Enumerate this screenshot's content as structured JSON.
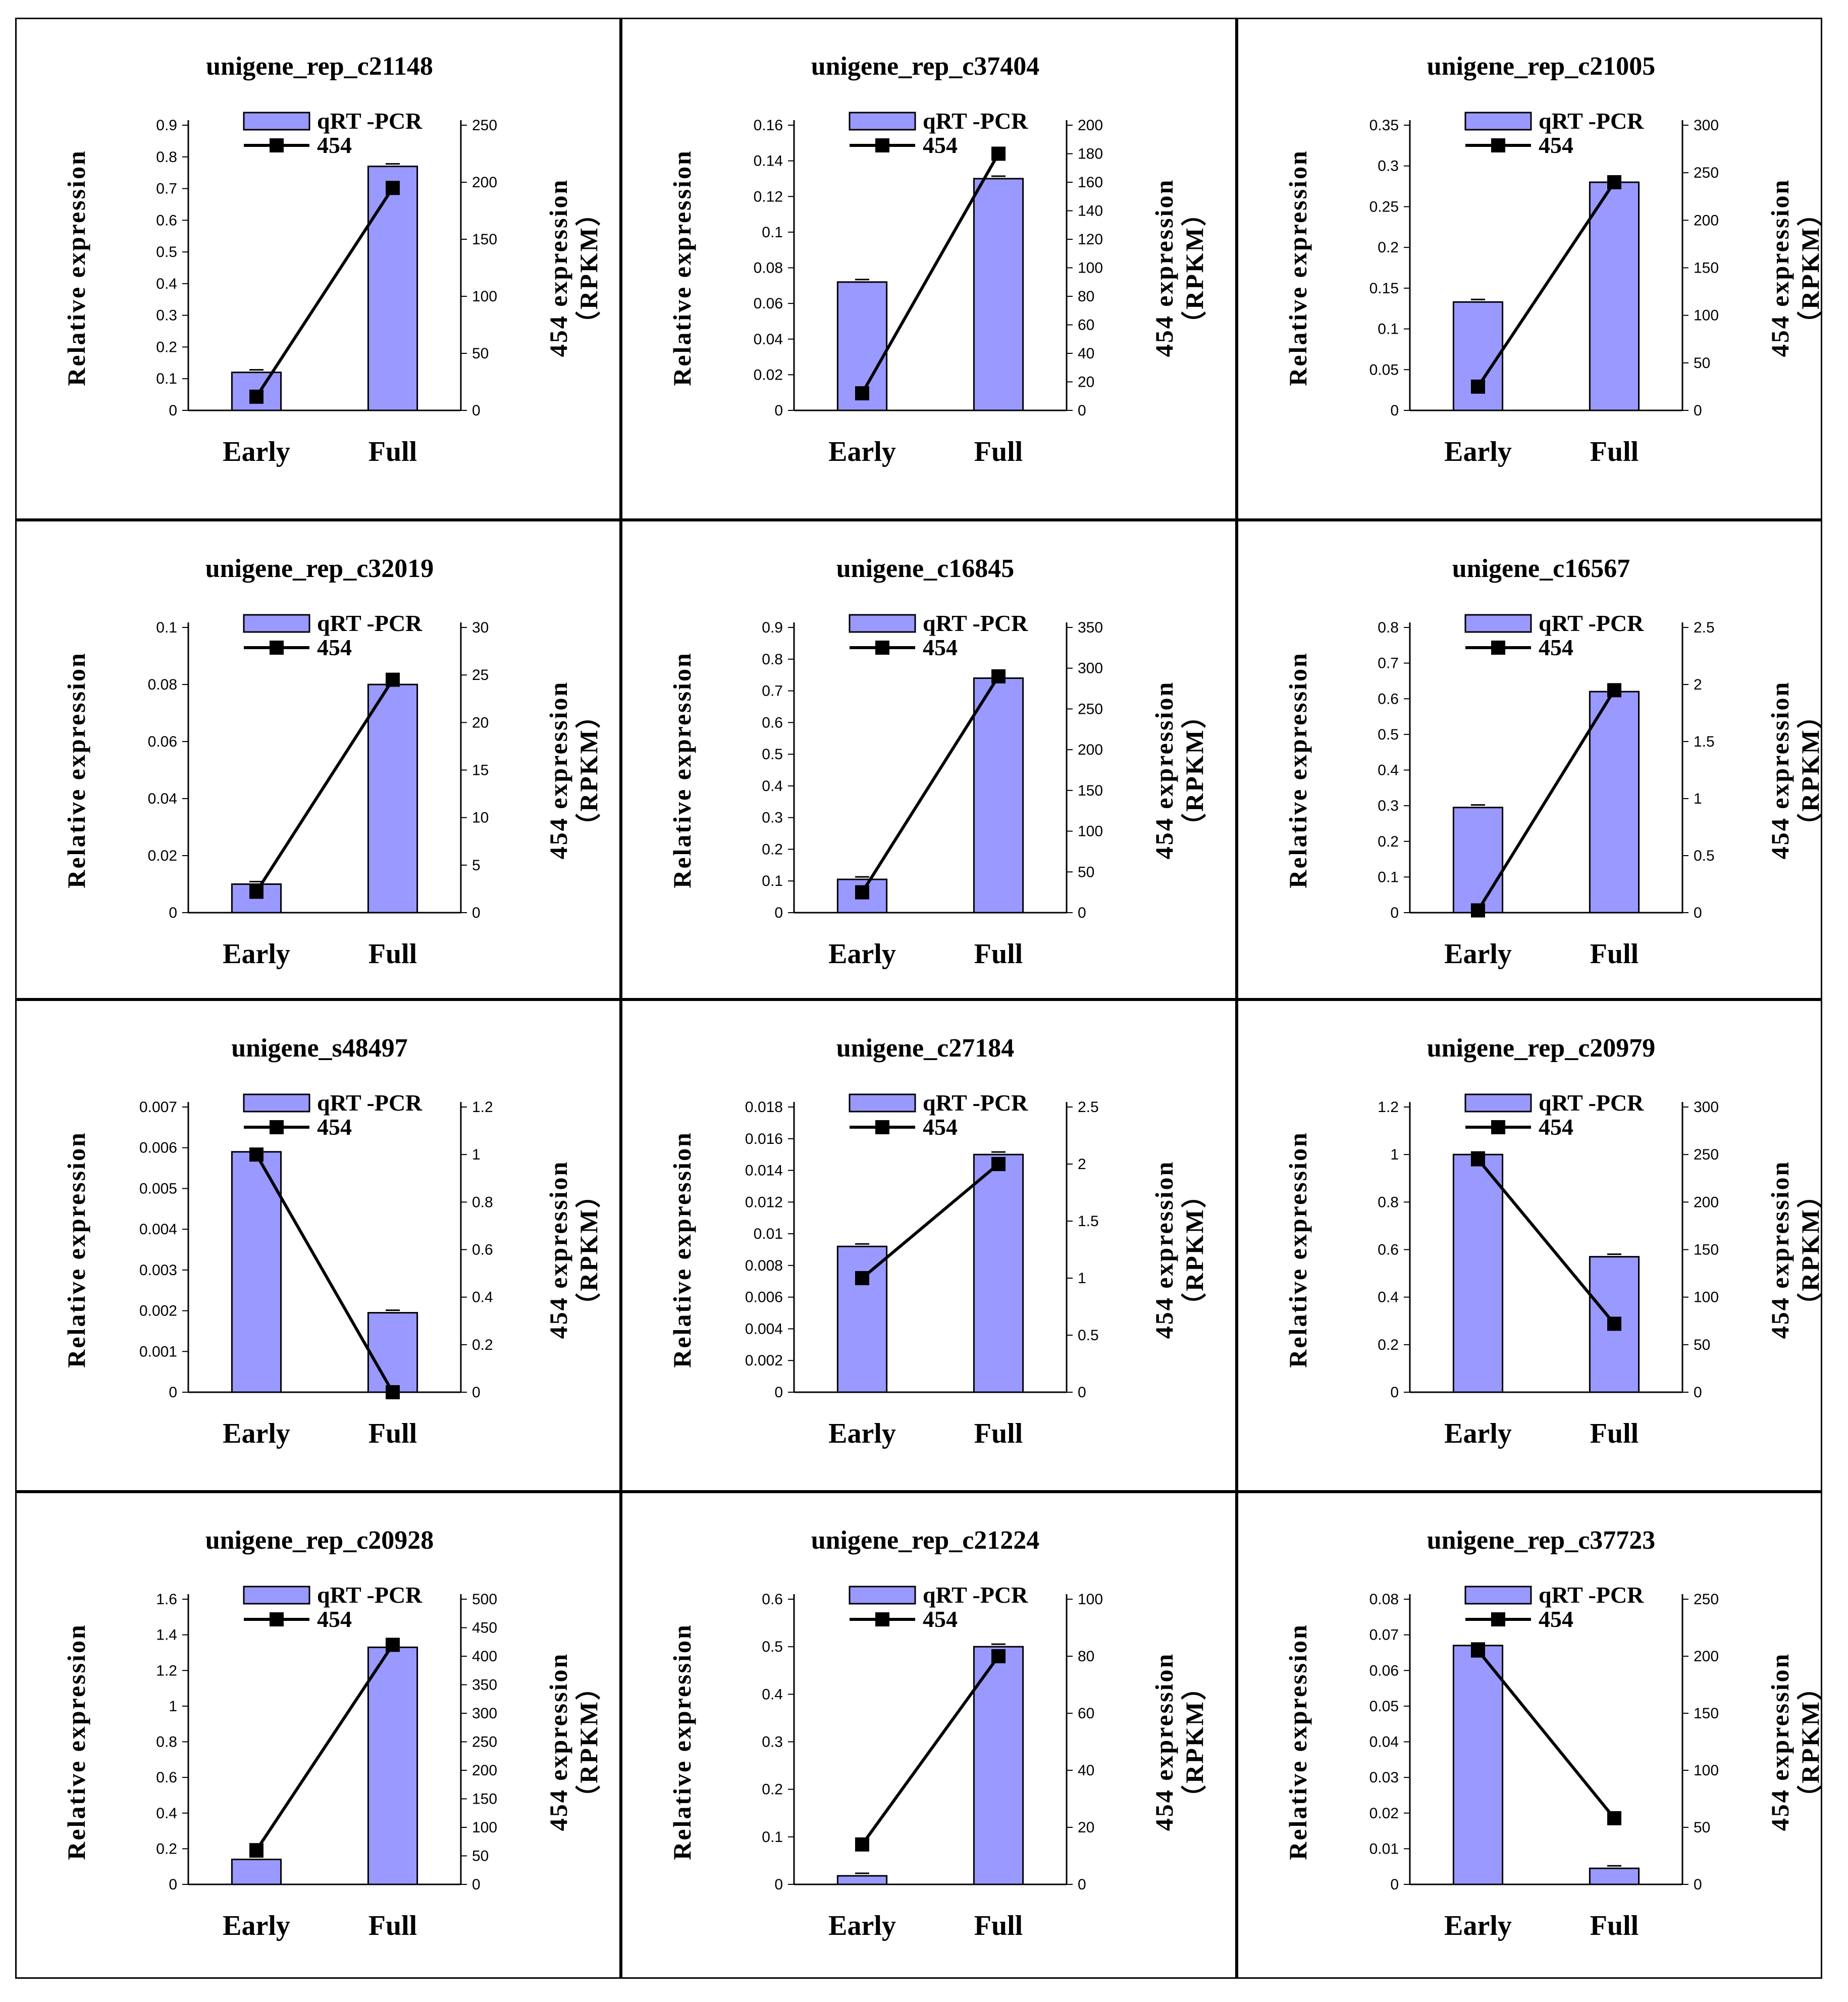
{
  "figure": {
    "legend_bar": "qRT -PCR",
    "legend_line": "454",
    "y1_label": "Relative expression",
    "y2_label_1": "454 expression",
    "y2_label_2": "（RPKM）",
    "colors": {
      "bar": "#9999ff",
      "bar_stroke": "#000000",
      "line": "#000000"
    }
  },
  "chart_data": [
    {
      "type": "bar",
      "title": "unigene_rep_c21148",
      "categories": [
        "Early",
        "Full"
      ],
      "series": [
        {
          "name": "qRT -PCR",
          "values": [
            0.12,
            0.77
          ],
          "axis": "left"
        },
        {
          "name": "454",
          "type": "line",
          "values": [
            12,
            195
          ],
          "axis": "right"
        }
      ],
      "ylim": [
        0,
        0.9
      ],
      "y2lim": [
        0,
        250
      ],
      "yticks": [
        "0",
        "0.1",
        "0.2",
        "0.3",
        "0.4",
        "0.5",
        "0.6",
        "0.7",
        "0.8",
        "0.9"
      ],
      "y2ticks": [
        "0",
        "50",
        "100",
        "150",
        "200",
        "250"
      ]
    },
    {
      "type": "bar",
      "title": "unigene_rep_c37404",
      "categories": [
        "Early",
        "Full"
      ],
      "series": [
        {
          "name": "qRT -PCR",
          "values": [
            0.072,
            0.13
          ],
          "axis": "left"
        },
        {
          "name": "454",
          "type": "line",
          "values": [
            12,
            180
          ],
          "axis": "right"
        }
      ],
      "ylim": [
        0,
        0.16
      ],
      "y2lim": [
        0,
        200
      ],
      "yticks": [
        "0",
        "0.02",
        "0.04",
        "0.06",
        "0.08",
        "0.1",
        "0.12",
        "0.14",
        "0.16"
      ],
      "y2ticks": [
        "0",
        "20",
        "40",
        "60",
        "80",
        "100",
        "120",
        "140",
        "160",
        "180",
        "200"
      ]
    },
    {
      "type": "bar",
      "title": "unigene_rep_c21005",
      "categories": [
        "Early",
        "Full"
      ],
      "series": [
        {
          "name": "qRT -PCR",
          "values": [
            0.133,
            0.28
          ],
          "axis": "left"
        },
        {
          "name": "454",
          "type": "line",
          "values": [
            25,
            240
          ],
          "axis": "right"
        }
      ],
      "ylim": [
        0,
        0.35
      ],
      "y2lim": [
        0,
        300
      ],
      "yticks": [
        "0",
        "0.05",
        "0.1",
        "0.15",
        "0.2",
        "0.25",
        "0.3",
        "0.35"
      ],
      "y2ticks": [
        "0",
        "50",
        "100",
        "150",
        "200",
        "250",
        "300"
      ]
    },
    {
      "type": "bar",
      "title": "unigene_rep_c32019",
      "categories": [
        "Early",
        "Full"
      ],
      "series": [
        {
          "name": "qRT -PCR",
          "values": [
            0.01,
            0.08
          ],
          "axis": "left"
        },
        {
          "name": "454",
          "type": "line",
          "values": [
            2.2,
            24.5
          ],
          "axis": "right"
        }
      ],
      "ylim": [
        0,
        0.1
      ],
      "y2lim": [
        0,
        30
      ],
      "yticks": [
        "0",
        "0.02",
        "0.04",
        "0.06",
        "0.08",
        "0.1"
      ],
      "y2ticks": [
        "0",
        "5",
        "10",
        "15",
        "20",
        "25",
        "30"
      ]
    },
    {
      "type": "bar",
      "title": "unigene_c16845",
      "categories": [
        "Early",
        "Full"
      ],
      "series": [
        {
          "name": "qRT -PCR",
          "values": [
            0.105,
            0.74
          ],
          "axis": "left"
        },
        {
          "name": "454",
          "type": "line",
          "values": [
            25,
            290
          ],
          "axis": "right"
        }
      ],
      "ylim": [
        0,
        0.9
      ],
      "y2lim": [
        0,
        350
      ],
      "yticks": [
        "0",
        "0.1",
        "0.2",
        "0.3",
        "0.4",
        "0.5",
        "0.6",
        "0.7",
        "0.8",
        "0.9"
      ],
      "y2ticks": [
        "0",
        "50",
        "100",
        "150",
        "200",
        "250",
        "300",
        "350"
      ]
    },
    {
      "type": "bar",
      "title": "unigene_c16567",
      "categories": [
        "Early",
        "Full"
      ],
      "series": [
        {
          "name": "qRT -PCR",
          "values": [
            0.295,
            0.62
          ],
          "axis": "left"
        },
        {
          "name": "454",
          "type": "line",
          "values": [
            0.02,
            1.95
          ],
          "axis": "right"
        }
      ],
      "ylim": [
        0,
        0.8
      ],
      "y2lim": [
        0,
        2.5
      ],
      "yticks": [
        "0",
        "0.1",
        "0.2",
        "0.3",
        "0.4",
        "0.5",
        "0.6",
        "0.7",
        "0.8"
      ],
      "y2ticks": [
        "0",
        "0.5",
        "1",
        "1.5",
        "2",
        "2.5"
      ]
    },
    {
      "type": "bar",
      "title": "unigene_s48497",
      "categories": [
        "Early",
        "Full"
      ],
      "series": [
        {
          "name": "qRT -PCR",
          "values": [
            0.0059,
            0.00195
          ],
          "axis": "left"
        },
        {
          "name": "454",
          "type": "line",
          "values": [
            1.0,
            0.0
          ],
          "axis": "right"
        }
      ],
      "ylim": [
        0,
        0.007
      ],
      "y2lim": [
        0,
        1.2
      ],
      "yticks": [
        "0",
        "0.001",
        "0.002",
        "0.003",
        "0.004",
        "0.005",
        "0.006",
        "0.007"
      ],
      "y2ticks": [
        "0",
        "0.2",
        "0.4",
        "0.6",
        "0.8",
        "1",
        "1.2"
      ]
    },
    {
      "type": "bar",
      "title": "unigene_c27184",
      "categories": [
        "Early",
        "Full"
      ],
      "series": [
        {
          "name": "qRT -PCR",
          "values": [
            0.0092,
            0.015
          ],
          "axis": "left"
        },
        {
          "name": "454",
          "type": "line",
          "values": [
            1.0,
            2.0
          ],
          "axis": "right"
        }
      ],
      "ylim": [
        0,
        0.018
      ],
      "y2lim": [
        0,
        2.5
      ],
      "yticks": [
        "0",
        "0.002",
        "0.004",
        "0.006",
        "0.008",
        "0.01",
        "0.012",
        "0.014",
        "0.016",
        "0.018"
      ],
      "y2ticks": [
        "0",
        "0.5",
        "1",
        "1.5",
        "2",
        "2.5"
      ]
    },
    {
      "type": "bar",
      "title": "unigene_rep_c20979",
      "categories": [
        "Early",
        "Full"
      ],
      "series": [
        {
          "name": "qRT -PCR",
          "values": [
            1.0,
            0.57
          ],
          "axis": "left"
        },
        {
          "name": "454",
          "type": "line",
          "values": [
            245,
            72
          ],
          "axis": "right"
        }
      ],
      "ylim": [
        0,
        1.2
      ],
      "y2lim": [
        0,
        300
      ],
      "yticks": [
        "0",
        "0.2",
        "0.4",
        "0.6",
        "0.8",
        "1",
        "1.2"
      ],
      "y2ticks": [
        "0",
        "50",
        "100",
        "150",
        "200",
        "250",
        "300"
      ]
    },
    {
      "type": "bar",
      "title": "unigene_rep_c20928",
      "categories": [
        "Early",
        "Full"
      ],
      "series": [
        {
          "name": "qRT -PCR",
          "values": [
            0.14,
            1.33
          ],
          "axis": "left"
        },
        {
          "name": "454",
          "type": "line",
          "values": [
            60,
            420
          ],
          "axis": "right"
        }
      ],
      "ylim": [
        0,
        1.6
      ],
      "y2lim": [
        0,
        500
      ],
      "yticks": [
        "0",
        "0.2",
        "0.4",
        "0.6",
        "0.8",
        "1",
        "1.2",
        "1.4",
        "1.6"
      ],
      "y2ticks": [
        "0",
        "50",
        "100",
        "150",
        "200",
        "250",
        "300",
        "350",
        "400",
        "450",
        "500"
      ]
    },
    {
      "type": "bar",
      "title": "unigene_rep_c21224",
      "categories": [
        "Early",
        "Full"
      ],
      "series": [
        {
          "name": "qRT -PCR",
          "values": [
            0.018,
            0.5
          ],
          "axis": "left"
        },
        {
          "name": "454",
          "type": "line",
          "values": [
            14,
            80
          ],
          "axis": "right"
        }
      ],
      "ylim": [
        0,
        0.6
      ],
      "y2lim": [
        0,
        100
      ],
      "yticks": [
        "0",
        "0.1",
        "0.2",
        "0.3",
        "0.4",
        "0.5",
        "0.6"
      ],
      "y2ticks": [
        "0",
        "20",
        "40",
        "60",
        "80",
        "100"
      ]
    },
    {
      "type": "bar",
      "title": "unigene_rep_c37723",
      "categories": [
        "Early",
        "Full"
      ],
      "series": [
        {
          "name": "qRT -PCR",
          "values": [
            0.067,
            0.0045
          ],
          "axis": "left"
        },
        {
          "name": "454",
          "type": "line",
          "values": [
            205,
            58
          ],
          "axis": "right"
        }
      ],
      "ylim": [
        0,
        0.08
      ],
      "y2lim": [
        0,
        250
      ],
      "yticks": [
        "0",
        "0.01",
        "0.02",
        "0.03",
        "0.04",
        "0.05",
        "0.06",
        "0.07",
        "0.08"
      ],
      "y2ticks": [
        "0",
        "50",
        "100",
        "150",
        "200",
        "250"
      ]
    }
  ]
}
